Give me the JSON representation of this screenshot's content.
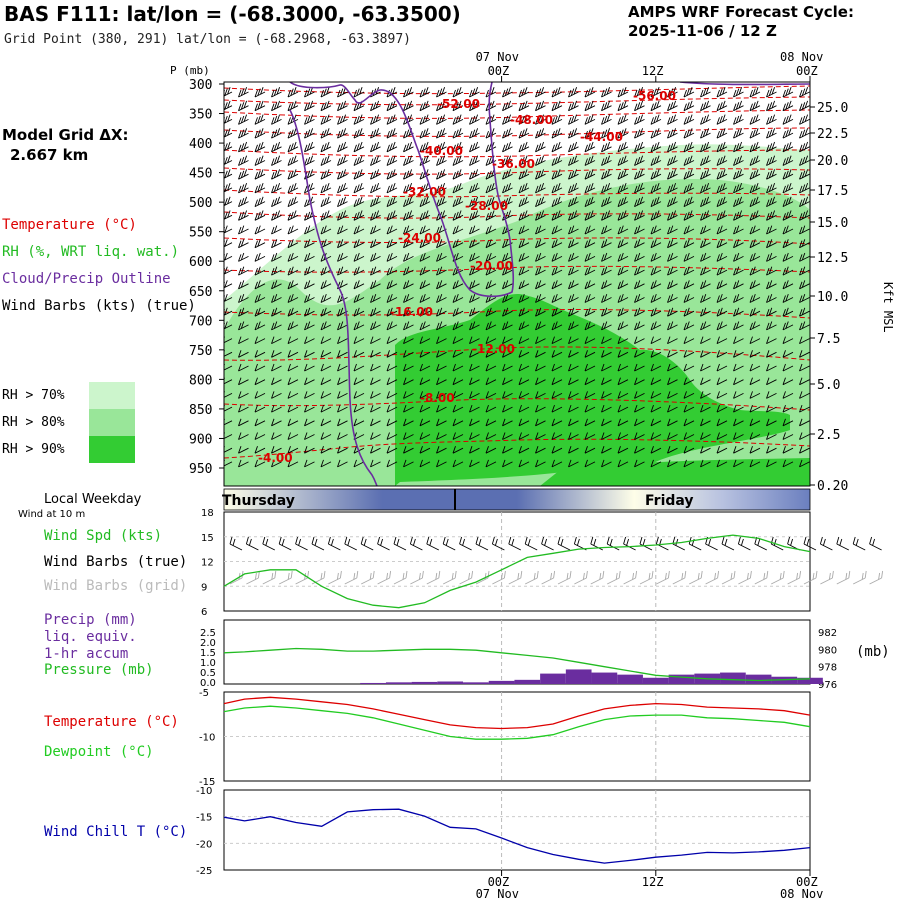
{
  "header": {
    "title": "BAS F111:  lat/lon = (-68.3000, -63.3500)",
    "grid_point": "Grid Point (380, 291) lat/lon = (-68.2968, -63.3897)",
    "forecast_line1": "AMPS WRF Forecast Cycle:",
    "forecast_line2": "2025-11-06 / 12  Z",
    "model_grid_line1": "Model Grid ΔX:",
    "model_grid_line2": "2.667 km"
  },
  "legend": {
    "temperature": "Temperature (°C)",
    "rh": "RH (%, WRT liq. wat.)",
    "cloud": "Cloud/Precip Outline",
    "wind": "Wind Barbs (kts) (true)",
    "rh70": "RH > 70%",
    "rh80": "RH > 80%",
    "rh90": "RH > 90%",
    "rh70_color": "#ccf5cc",
    "rh80_color": "#99e699",
    "rh90_color": "#33cc33"
  },
  "time_axis": {
    "top_date": "07 Nov",
    "top_date_right": "08 Nov",
    "ticks": [
      "00Z",
      "12Z",
      "00Z"
    ],
    "bottom_ticks": [
      "00Z",
      "12Z",
      "00Z"
    ],
    "bottom_dates": [
      "07 Nov",
      "08 Nov"
    ]
  },
  "weekday": {
    "title": "Local Weekday",
    "days": [
      "Thursday",
      "Friday"
    ]
  },
  "colors": {
    "temperature": "#dd0000",
    "rh": "#22bb22",
    "cloud": "#6a2d9f",
    "wind_chill": "#0000aa",
    "precip": "#6a2d9f",
    "pressure": "#22bb22",
    "dewpoint": "#22cc22"
  },
  "chart_data": [
    {
      "type": "contour",
      "name": "cross-section",
      "y_axis_label": "P (mb)",
      "pressure_ticks": [
        300,
        350,
        400,
        450,
        500,
        550,
        600,
        650,
        700,
        750,
        800,
        850,
        900,
        950
      ],
      "right_axis_label": "Kft MSL",
      "right_ticks": [
        "25.0",
        "22.5",
        "20.0",
        "17.5",
        "15.0",
        "12.5",
        "10.0",
        "7.5",
        "5.0",
        "2.5",
        "0.20"
      ],
      "temperature_contour_labels": [
        "-56.00",
        "-52.00",
        "-48.00",
        "-44.00",
        "-40.00",
        "-36.00",
        "-32.00",
        "-28.00",
        "-24.00",
        "-20.00",
        "-16.00",
        "-12.00",
        "-8.00",
        "-4.00"
      ]
    },
    {
      "type": "line",
      "name": "wind",
      "labels": [
        "Wind Spd (kts)",
        "Wind Barbs (true)",
        "Wind Barbs (grid)"
      ],
      "sublabel": "Wind at 10 m",
      "y_ticks": [
        18,
        15,
        12,
        9,
        6
      ],
      "ylim": [
        6,
        18
      ],
      "x_hours": [
        -21.6,
        -20,
        -18,
        -16,
        -14,
        -12,
        -10,
        -8,
        -6,
        -4,
        -2,
        0,
        2,
        4,
        6,
        8,
        10,
        12,
        14,
        16,
        18,
        20,
        22,
        24
      ],
      "speed": [
        9.0,
        10.5,
        11.0,
        11.0,
        9.0,
        7.5,
        6.7,
        6.4,
        7.0,
        8.5,
        9.5,
        11.0,
        12.5,
        13.0,
        13.5,
        13.7,
        13.8,
        14.0,
        14.3,
        14.8,
        15.2,
        14.8,
        13.8,
        13.2
      ]
    },
    {
      "type": "bar+line",
      "name": "precip-pressure",
      "labels": [
        "Precip (mm)",
        "liq. equiv.",
        "1-hr accum",
        "Pressure (mb)"
      ],
      "precip_ticks": [
        "2.5",
        "2.0",
        "1.5",
        "1.0",
        "0.5",
        "0.0"
      ],
      "pressure_ticks": [
        982,
        980,
        978,
        976
      ],
      "pressure_unit": "(mb)",
      "x_hours": [
        -21.6,
        -20,
        -18,
        -16,
        -14,
        -12,
        -10,
        -8,
        -6,
        -4,
        -2,
        0,
        2,
        4,
        6,
        8,
        10,
        12,
        14,
        16,
        18,
        20,
        22,
        24
      ],
      "pressure": [
        979.6,
        979.7,
        979.9,
        980.1,
        980.0,
        979.8,
        979.8,
        979.9,
        980.0,
        980.0,
        979.9,
        979.6,
        979.3,
        979.0,
        978.5,
        978.0,
        977.5,
        977.0,
        976.8,
        976.6,
        976.5,
        976.4,
        976.5,
        976.6
      ],
      "precip": [
        0,
        0,
        0,
        0,
        0,
        0,
        0.05,
        0.08,
        0.1,
        0.12,
        0.08,
        0.15,
        0.2,
        0.5,
        0.7,
        0.55,
        0.45,
        0.3,
        0.45,
        0.5,
        0.55,
        0.45,
        0.35,
        0.3
      ]
    },
    {
      "type": "line",
      "name": "temperature",
      "labels": [
        "Temperature (°C)",
        "Dewpoint (°C)"
      ],
      "y_ticks": [
        -5,
        -10,
        -15
      ],
      "ylim": [
        -15,
        -5
      ],
      "x_hours": [
        -21.6,
        -20,
        -18,
        -16,
        -14,
        -12,
        -10,
        -8,
        -6,
        -4,
        -2,
        0,
        2,
        4,
        6,
        8,
        10,
        12,
        14,
        16,
        18,
        20,
        22,
        24
      ],
      "temperature": [
        -6.3,
        -5.8,
        -5.6,
        -5.8,
        -6.1,
        -6.4,
        -6.9,
        -7.5,
        -8.1,
        -8.7,
        -9.0,
        -9.1,
        -9.0,
        -8.6,
        -7.7,
        -6.9,
        -6.5,
        -6.3,
        -6.4,
        -6.7,
        -6.8,
        -6.9,
        -7.1,
        -7.6
      ],
      "dewpoint": [
        -7.2,
        -6.8,
        -6.6,
        -6.8,
        -7.1,
        -7.4,
        -7.9,
        -8.6,
        -9.3,
        -10.0,
        -10.3,
        -10.3,
        -10.2,
        -9.8,
        -8.9,
        -8.1,
        -7.7,
        -7.6,
        -7.6,
        -7.9,
        -8.0,
        -8.2,
        -8.4,
        -8.9
      ]
    },
    {
      "type": "line",
      "name": "wind-chill",
      "labels": [
        "Wind Chill T (°C)"
      ],
      "y_ticks": [
        -10,
        -15,
        -20,
        -25
      ],
      "ylim": [
        -25,
        -10
      ],
      "x_hours": [
        -21.6,
        -20,
        -18,
        -16,
        -14,
        -12,
        -10,
        -8,
        -6,
        -4,
        -2,
        0,
        2,
        4,
        6,
        8,
        10,
        12,
        14,
        16,
        18,
        20,
        22,
        24
      ],
      "wind_chill": [
        -15.1,
        -15.8,
        -15.0,
        -16.1,
        -16.8,
        -14.1,
        -13.7,
        -13.6,
        -14.9,
        -17.0,
        -17.3,
        -19.0,
        -20.8,
        -22.1,
        -23.0,
        -23.7,
        -23.2,
        -22.6,
        -22.2,
        -21.7,
        -21.8,
        -21.6,
        -21.3,
        -20.8
      ]
    }
  ]
}
